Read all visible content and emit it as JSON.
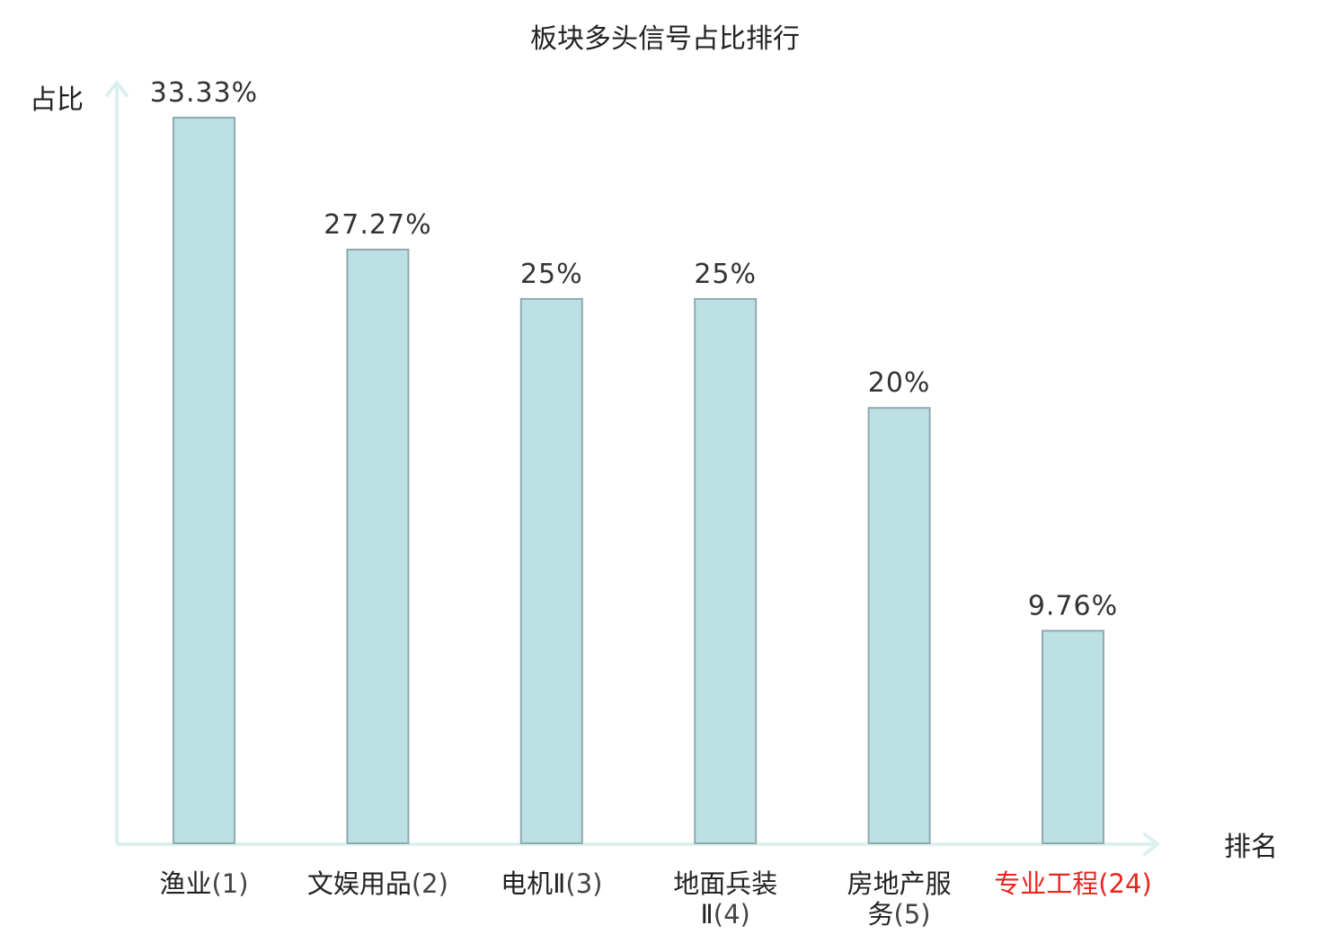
{
  "chart_data": {
    "type": "bar",
    "title": "板块多头信号占比排行",
    "ylabel": "占比",
    "xlabel": "排名",
    "unit": "%",
    "ylim": [
      0,
      35
    ],
    "grid": false,
    "categories": [
      {
        "name": "渔业",
        "rank": "(1)",
        "highlight": false
      },
      {
        "name": "文娱用品",
        "rank": "(2)",
        "highlight": false
      },
      {
        "name": "电机Ⅱ",
        "rank": "(3)",
        "highlight": false
      },
      {
        "name": "地面兵装Ⅱ",
        "name_lines": [
          "地面兵装",
          "Ⅱ"
        ],
        "rank": "(4)",
        "highlight": false
      },
      {
        "name": "房地产服务",
        "name_lines": [
          "房地产服",
          "务"
        ],
        "rank": "(5)",
        "highlight": false
      },
      {
        "name": "专业工程",
        "rank": "(24)",
        "highlight": true
      }
    ],
    "values": [
      33.33,
      27.27,
      25,
      25,
      20,
      9.76
    ],
    "value_labels": [
      "33.33%",
      "27.27%",
      "25%",
      "25%",
      "20%",
      "9.76%"
    ],
    "colors": {
      "bar_fill": "#bce0e3",
      "bar_stroke": "#8eabae",
      "axis": "#dcf1ee",
      "highlight": "#e8251f"
    }
  }
}
